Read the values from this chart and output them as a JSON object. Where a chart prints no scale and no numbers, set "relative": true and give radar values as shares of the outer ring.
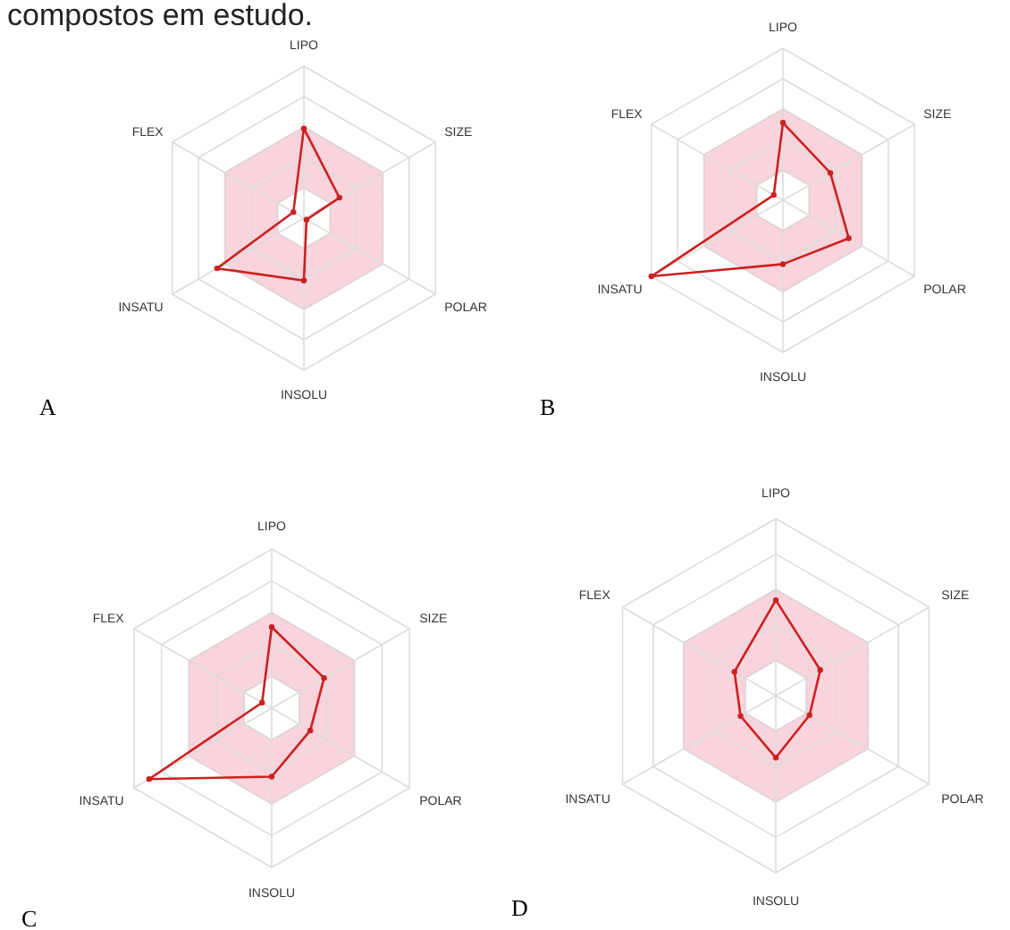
{
  "chart_data": [
    {
      "type": "radar",
      "title": "A",
      "annotations": [
        "compostos em estudo."
      ],
      "categories": [
        "LIPO",
        "SIZE",
        "POLAR",
        "INSOLU",
        "INSATU",
        "FLEX"
      ],
      "relative": true,
      "grid": true,
      "marker": "circle",
      "line_style": "solid",
      "series": [
        {
          "color": "#cc2020",
          "values": [
            0.59,
            0.27,
            0.02,
            0.41,
            0.66,
            0.08
          ]
        }
      ]
    },
    {
      "type": "radar",
      "title": "B",
      "categories": [
        "LIPO",
        "SIZE",
        "POLAR",
        "INSOLU",
        "INSATU",
        "FLEX"
      ],
      "relative": true,
      "grid": true,
      "marker": "circle",
      "line_style": "solid",
      "series": [
        {
          "color": "#cc2020",
          "values": [
            0.51,
            0.36,
            0.5,
            0.42,
            1.0,
            0.07
          ]
        }
      ]
    },
    {
      "type": "radar",
      "title": "C",
      "categories": [
        "LIPO",
        "SIZE",
        "POLAR",
        "INSOLU",
        "INSATU",
        "FLEX"
      ],
      "relative": true,
      "grid": true,
      "marker": "circle",
      "line_style": "solid",
      "series": [
        {
          "color": "#cc2020",
          "values": [
            0.51,
            0.38,
            0.28,
            0.43,
            0.89,
            0.07
          ]
        }
      ]
    },
    {
      "type": "radar",
      "title": "D",
      "categories": [
        "LIPO",
        "SIZE",
        "POLAR",
        "INSOLU",
        "INSATU",
        "FLEX"
      ],
      "relative": true,
      "grid": true,
      "marker": "circle",
      "line_style": "solid",
      "series": [
        {
          "color": "#cc2020",
          "values": [
            0.54,
            0.29,
            0.22,
            0.35,
            0.23,
            0.27
          ]
        }
      ]
    }
  ]
}
